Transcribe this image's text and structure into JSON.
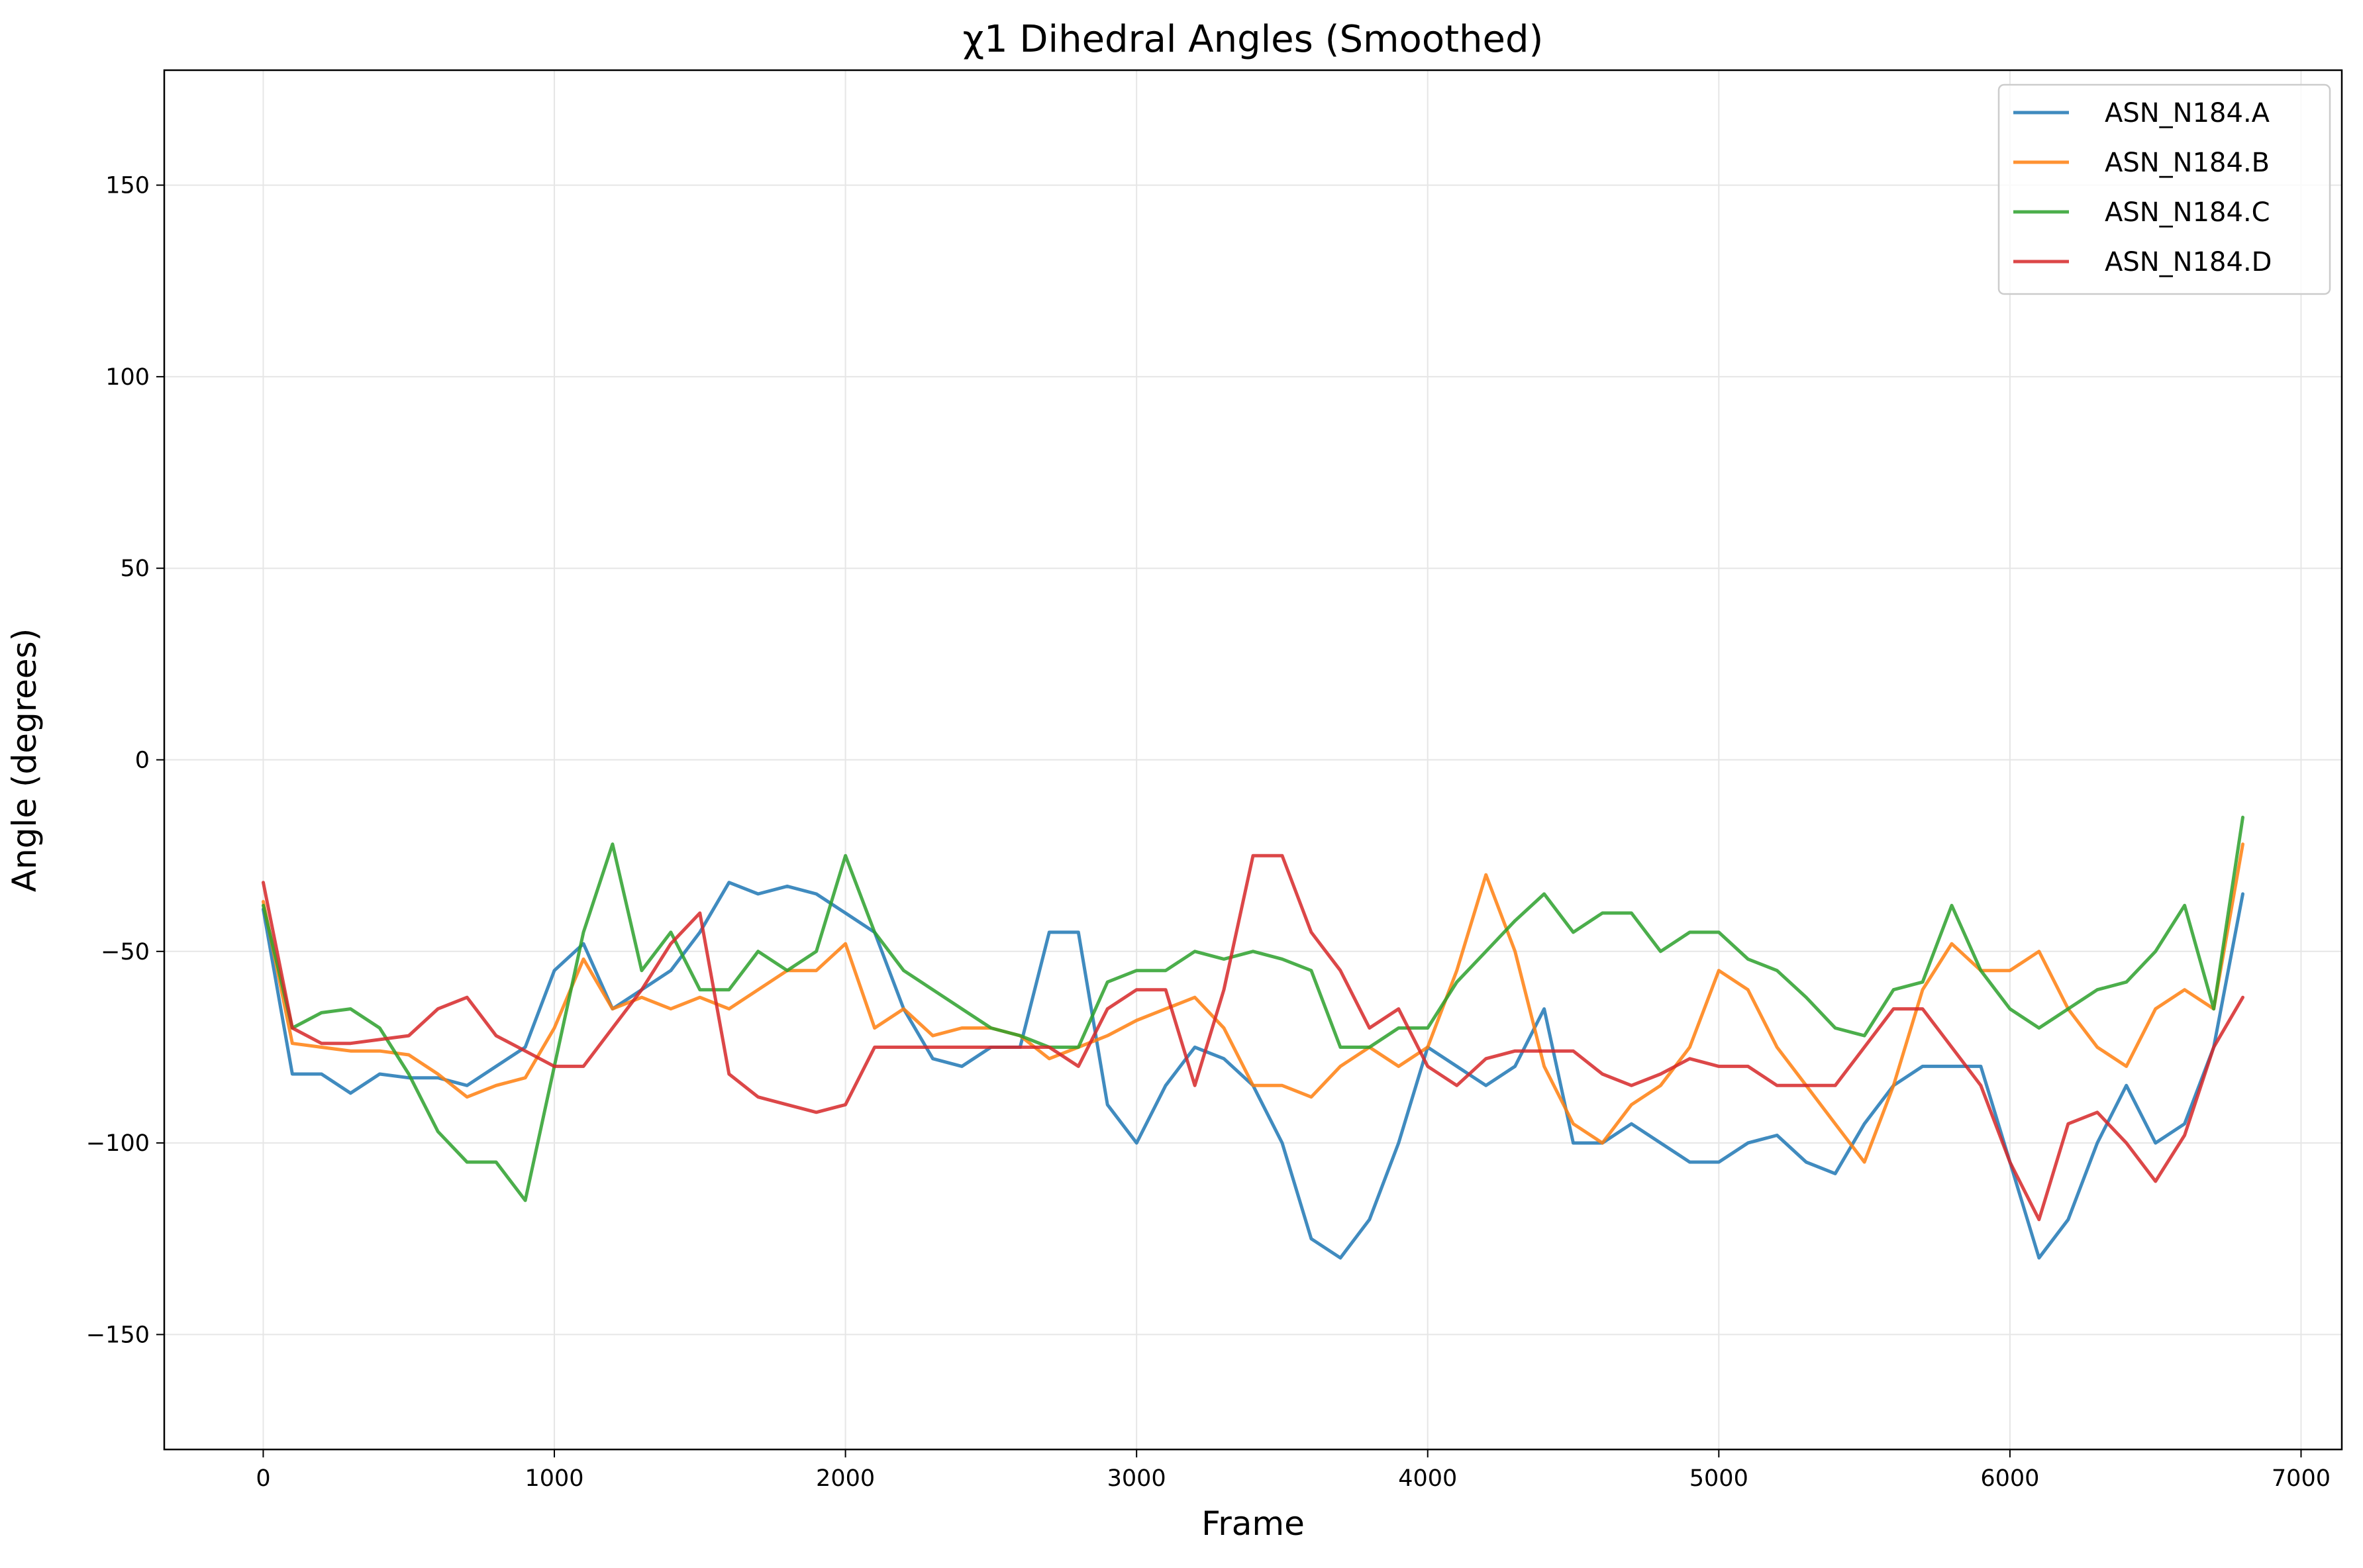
{
  "chart_data": {
    "type": "line",
    "title": "χ1 Dihedral Angles (Smoothed)",
    "xlabel": "Frame",
    "ylabel": "Angle (degrees)",
    "xlim": [
      -340,
      7140
    ],
    "ylim": [
      -180,
      180
    ],
    "x_ticks": [
      0,
      1000,
      2000,
      3000,
      4000,
      5000,
      6000,
      7000
    ],
    "y_ticks": [
      -150,
      -100,
      -50,
      0,
      50,
      100,
      150
    ],
    "x_tick_labels": [
      "0",
      "1000",
      "2000",
      "3000",
      "4000",
      "5000",
      "6000",
      "7000"
    ],
    "y_tick_labels": [
      "−150",
      "−100",
      "−50",
      "0",
      "50",
      "100",
      "150"
    ],
    "grid": true,
    "legend_position": "top-right",
    "x": [
      0,
      100,
      200,
      300,
      400,
      500,
      600,
      700,
      800,
      900,
      1000,
      1100,
      1200,
      1300,
      1400,
      1500,
      1600,
      1700,
      1800,
      1900,
      2000,
      2100,
      2200,
      2300,
      2400,
      2500,
      2600,
      2700,
      2800,
      2900,
      3000,
      3100,
      3200,
      3300,
      3400,
      3500,
      3600,
      3700,
      3800,
      3900,
      4000,
      4100,
      4200,
      4300,
      4400,
      4500,
      4600,
      4700,
      4800,
      4900,
      5000,
      5100,
      5200,
      5300,
      5400,
      5500,
      5600,
      5700,
      5800,
      5900,
      6000,
      6100,
      6200,
      6300,
      6400,
      6500,
      6600,
      6700,
      6800
    ],
    "series": [
      {
        "name": "ASN_N184.A",
        "color": "#1f77b4",
        "values": [
          -39,
          -82,
          -82,
          -87,
          -82,
          -83,
          -83,
          -85,
          -80,
          -75,
          -55,
          -48,
          -65,
          -60,
          -55,
          -45,
          -32,
          -35,
          -33,
          -35,
          -40,
          -45,
          -65,
          -78,
          -80,
          -75,
          -75,
          -45,
          -45,
          -90,
          -100,
          -85,
          -75,
          -78,
          -85,
          -100,
          -125,
          -130,
          -120,
          -100,
          -75,
          -80,
          -85,
          -80,
          -65,
          -100,
          -100,
          -95,
          -100,
          -105,
          -105,
          -100,
          -98,
          -105,
          -108,
          -95,
          -85,
          -80,
          -80,
          -80,
          -105,
          -130,
          -120,
          -100,
          -85,
          -100,
          -95,
          -75,
          -35
        ]
      },
      {
        "name": "ASN_N184.B",
        "color": "#ff7f0e",
        "values": [
          -37,
          -74,
          -75,
          -76,
          -76,
          -77,
          -82,
          -88,
          -85,
          -83,
          -70,
          -52,
          -65,
          -62,
          -65,
          -62,
          -65,
          -60,
          -55,
          -55,
          -48,
          -70,
          -65,
          -72,
          -70,
          -70,
          -72,
          -78,
          -75,
          -72,
          -68,
          -65,
          -62,
          -70,
          -85,
          -85,
          -88,
          -80,
          -75,
          -80,
          -75,
          -55,
          -30,
          -50,
          -80,
          -95,
          -100,
          -90,
          -85,
          -75,
          -55,
          -60,
          -75,
          -85,
          -95,
          -105,
          -85,
          -60,
          -48,
          -55,
          -55,
          -50,
          -65,
          -75,
          -80,
          -65,
          -60,
          -65,
          -22
        ]
      },
      {
        "name": "ASN_N184.C",
        "color": "#2ca02c",
        "values": [
          -38,
          -70,
          -66,
          -65,
          -70,
          -82,
          -97,
          -105,
          -105,
          -115,
          -80,
          -45,
          -22,
          -55,
          -45,
          -60,
          -60,
          -50,
          -55,
          -50,
          -25,
          -45,
          -55,
          -60,
          -65,
          -70,
          -72,
          -75,
          -75,
          -58,
          -55,
          -55,
          -50,
          -52,
          -50,
          -52,
          -55,
          -75,
          -75,
          -70,
          -70,
          -58,
          -50,
          -42,
          -35,
          -45,
          -40,
          -40,
          -50,
          -45,
          -45,
          -52,
          -55,
          -62,
          -70,
          -72,
          -60,
          -58,
          -38,
          -55,
          -65,
          -70,
          -65,
          -60,
          -58,
          -50,
          -38,
          -65,
          -15
        ]
      },
      {
        "name": "ASN_N184.D",
        "color": "#d62728",
        "values": [
          -32,
          -70,
          -74,
          -74,
          -73,
          -72,
          -65,
          -62,
          -72,
          -76,
          -80,
          -80,
          -70,
          -60,
          -48,
          -40,
          -82,
          -88,
          -90,
          -92,
          -90,
          -75,
          -75,
          -75,
          -75,
          -75,
          -75,
          -75,
          -80,
          -65,
          -60,
          -60,
          -85,
          -60,
          -25,
          -25,
          -45,
          -55,
          -70,
          -65,
          -80,
          -85,
          -78,
          -76,
          -76,
          -76,
          -82,
          -85,
          -82,
          -78,
          -80,
          -80,
          -85,
          -85,
          -85,
          -75,
          -65,
          -65,
          -75,
          -85,
          -105,
          -120,
          -95,
          -92,
          -100,
          -110,
          -98,
          -75,
          -62
        ]
      }
    ]
  }
}
